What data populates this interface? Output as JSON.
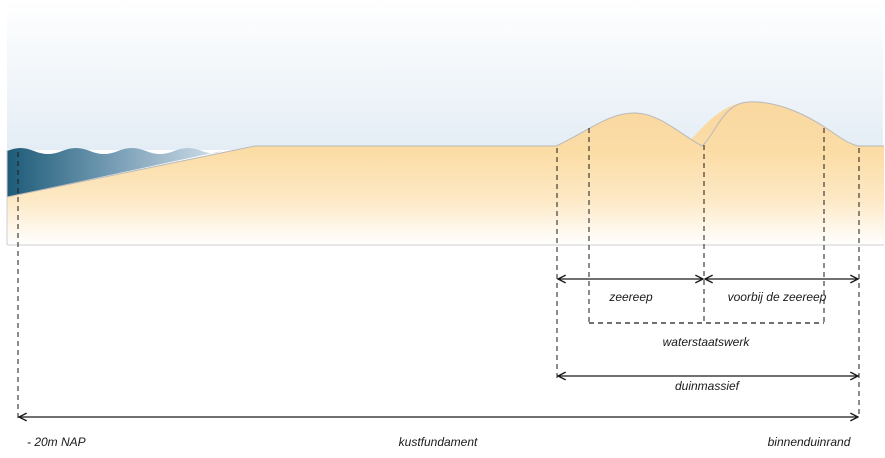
{
  "labels": {
    "zeereep": "zeereep",
    "voorbij_zeereep": "voorbij de zeereep",
    "waterstaatswerk": "waterstaatswerk",
    "duinmassief": "duinmassief",
    "nap": "- 20m NAP",
    "kustfundament": "kustfundament",
    "binnenduinrand": "binnenduinrand"
  },
  "colors": {
    "sky_top": "#ffffff",
    "sky_bottom": "#e6eef6",
    "sand": "#fbdca4",
    "sand_fade": "#ffffff",
    "sea_dark": "#1f5f7a",
    "sea_light": "#c9d8e6",
    "line": "#1a1a1a",
    "outline": "#c8c8c8"
  }
}
